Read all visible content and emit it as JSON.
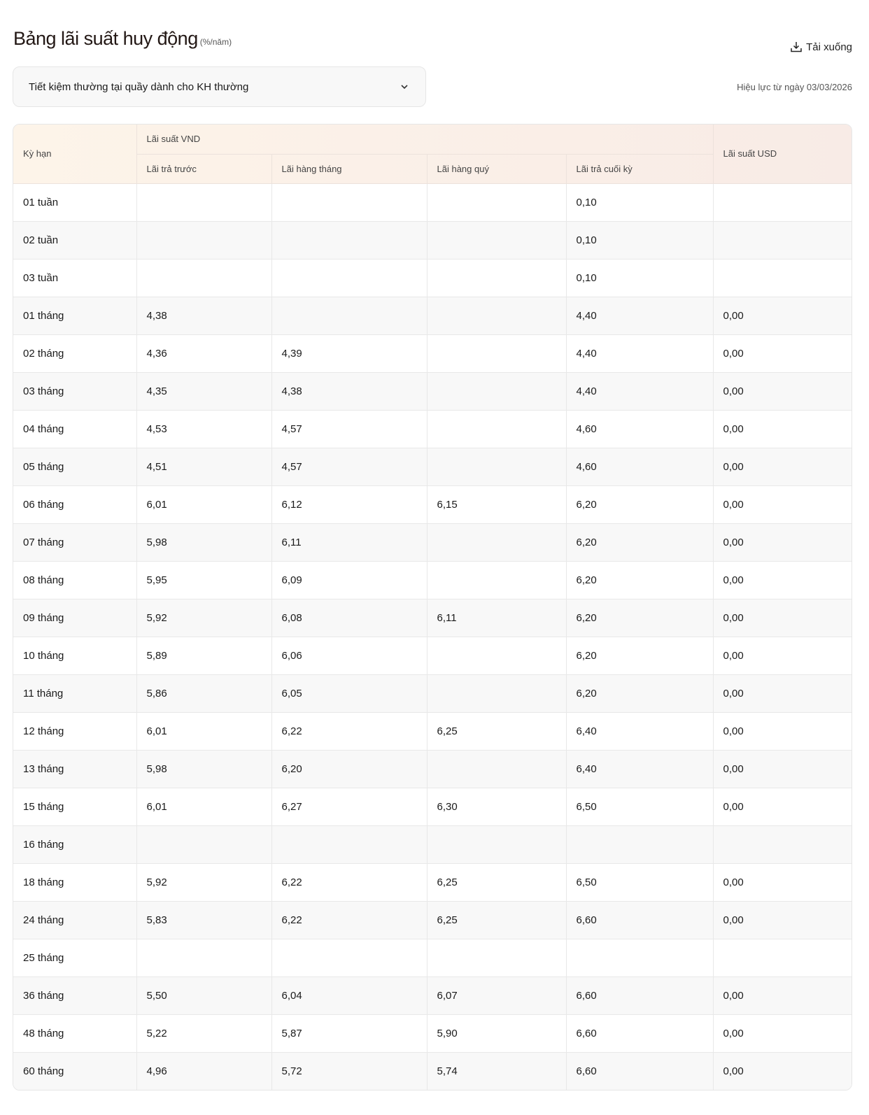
{
  "header": {
    "title": "Bảng lãi suất huy động",
    "unit": "(%/năm)",
    "download_label": "Tải xuống",
    "effective": "Hiệu lực từ ngày 03/03/2026"
  },
  "selector": {
    "value": "Tiết kiệm thường tại quầy dành cho KH thường"
  },
  "table": {
    "headers": {
      "term": "Kỳ hạn",
      "vnd": "Lãi suất VND",
      "usd": "Lãi suất USD",
      "prepaid": "Lãi trả trước",
      "monthly": "Lãi hàng tháng",
      "quarterly": "Lãi hàng quý",
      "end": "Lãi trả cuối kỳ"
    },
    "rows": [
      [
        "01 tuần",
        "",
        "",
        "",
        "0,10",
        ""
      ],
      [
        "02 tuần",
        "",
        "",
        "",
        "0,10",
        ""
      ],
      [
        "03 tuần",
        "",
        "",
        "",
        "0,10",
        ""
      ],
      [
        "01 tháng",
        "4,38",
        "",
        "",
        "4,40",
        "0,00"
      ],
      [
        "02 tháng",
        "4,36",
        "4,39",
        "",
        "4,40",
        "0,00"
      ],
      [
        "03 tháng",
        "4,35",
        "4,38",
        "",
        "4,40",
        "0,00"
      ],
      [
        "04 tháng",
        "4,53",
        "4,57",
        "",
        "4,60",
        "0,00"
      ],
      [
        "05 tháng",
        "4,51",
        "4,57",
        "",
        "4,60",
        "0,00"
      ],
      [
        "06 tháng",
        "6,01",
        "6,12",
        "6,15",
        "6,20",
        "0,00"
      ],
      [
        "07 tháng",
        "5,98",
        "6,11",
        "",
        "6,20",
        "0,00"
      ],
      [
        "08 tháng",
        "5,95",
        "6,09",
        "",
        "6,20",
        "0,00"
      ],
      [
        "09 tháng",
        "5,92",
        "6,08",
        "6,11",
        "6,20",
        "0,00"
      ],
      [
        "10 tháng",
        "5,89",
        "6,06",
        "",
        "6,20",
        "0,00"
      ],
      [
        "11 tháng",
        "5,86",
        "6,05",
        "",
        "6,20",
        "0,00"
      ],
      [
        "12 tháng",
        "6,01",
        "6,22",
        "6,25",
        "6,40",
        "0,00"
      ],
      [
        "13 tháng",
        "5,98",
        "6,20",
        "",
        "6,40",
        "0,00"
      ],
      [
        "15 tháng",
        "6,01",
        "6,27",
        "6,30",
        "6,50",
        "0,00"
      ],
      [
        "16 tháng",
        "",
        "",
        "",
        "",
        ""
      ],
      [
        "18 tháng",
        "5,92",
        "6,22",
        "6,25",
        "6,50",
        "0,00"
      ],
      [
        "24 tháng",
        "5,83",
        "6,22",
        "6,25",
        "6,60",
        "0,00"
      ],
      [
        "25 tháng",
        "",
        "",
        "",
        "",
        ""
      ],
      [
        "36 tháng",
        "5,50",
        "6,04",
        "6,07",
        "6,60",
        "0,00"
      ],
      [
        "48 tháng",
        "5,22",
        "5,87",
        "5,90",
        "6,60",
        "0,00"
      ],
      [
        "60 tháng",
        "4,96",
        "5,72",
        "5,74",
        "6,60",
        "0,00"
      ]
    ]
  }
}
